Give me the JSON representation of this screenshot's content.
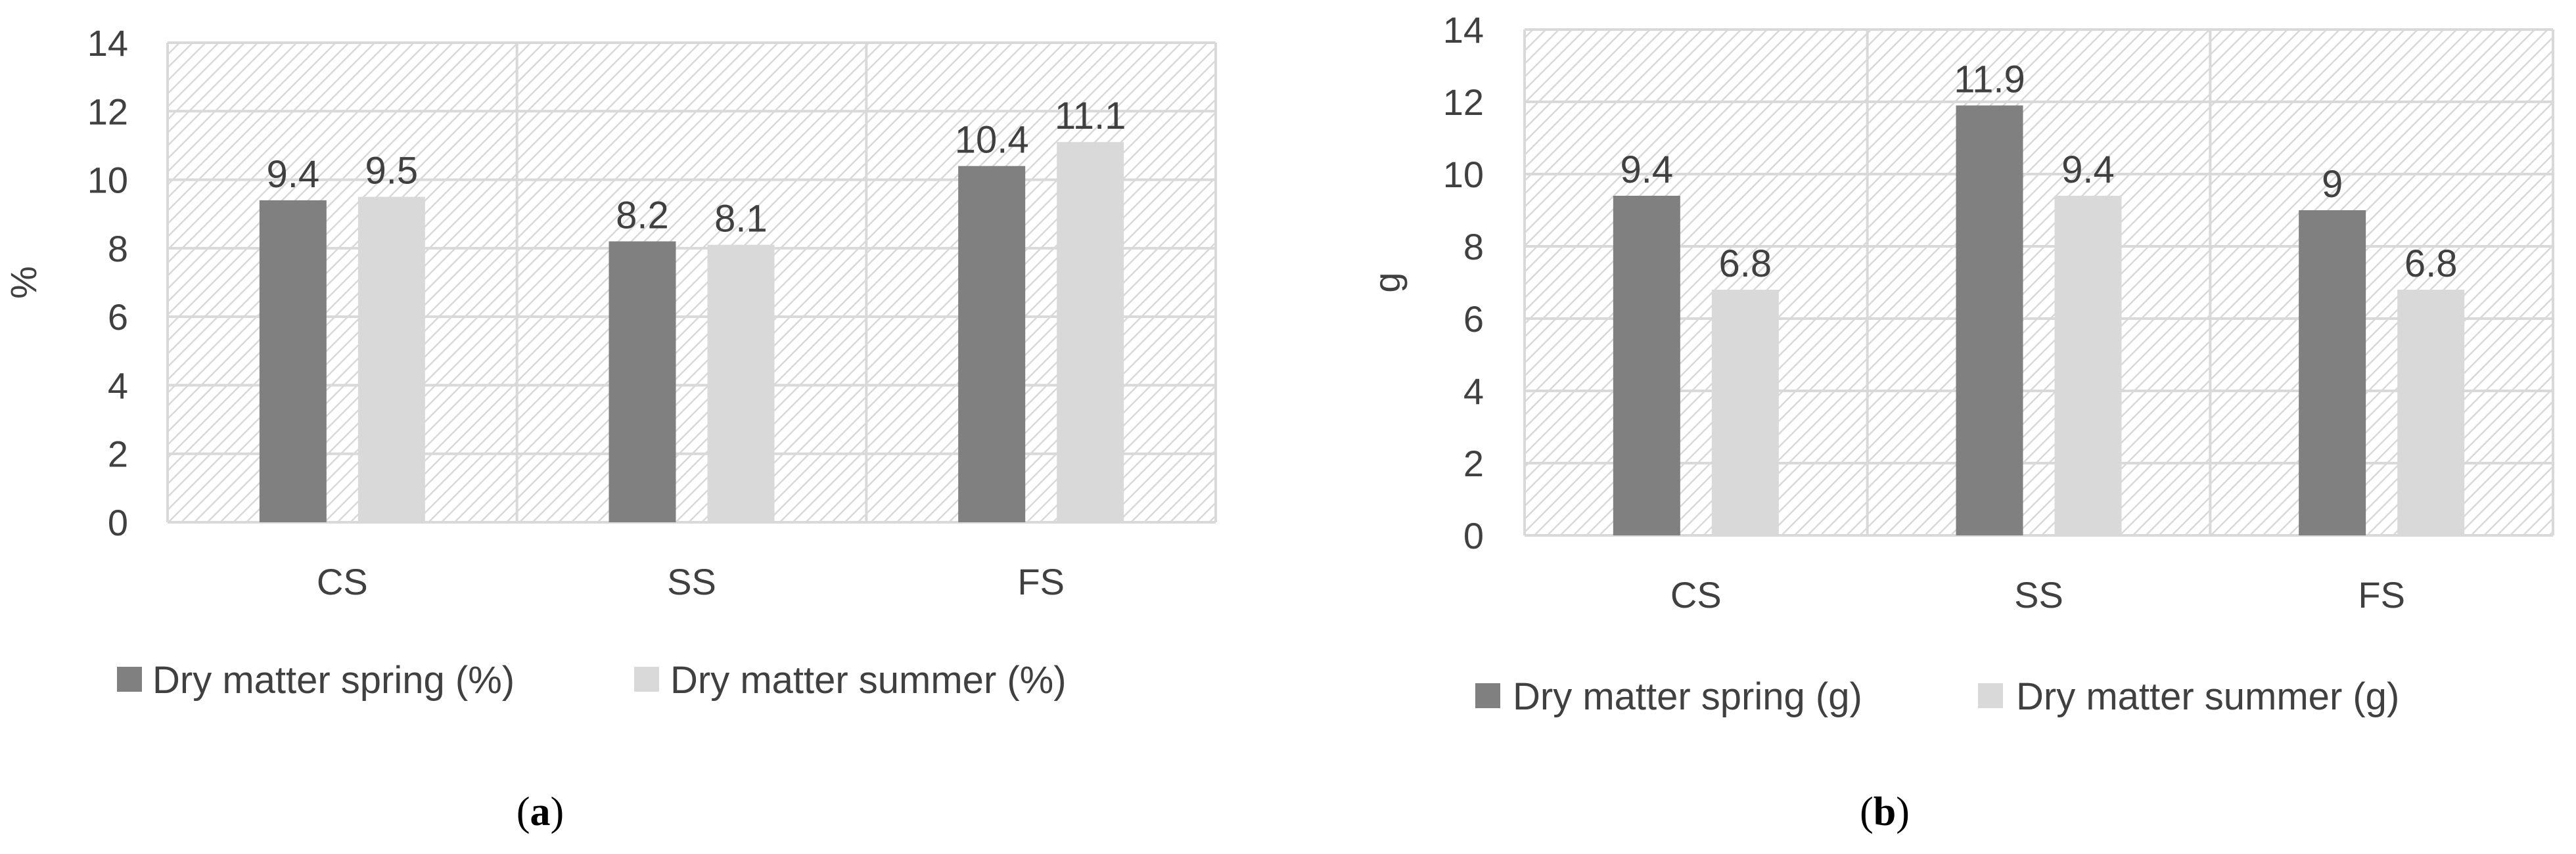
{
  "colors": {
    "spring": "#808080",
    "summer": "#d9d9d9",
    "grid": "#d9d9d9",
    "hatch": "#d9d9d9",
    "text": "#404040"
  },
  "chart_data": [
    {
      "type": "bar",
      "id": "a",
      "categories": [
        "CS",
        "SS",
        "FS"
      ],
      "series": [
        {
          "name": "Dry matter spring (%)",
          "values": [
            9.4,
            8.2,
            10.4
          ]
        },
        {
          "name": "Dry matter summer (%)",
          "values": [
            9.5,
            8.1,
            11.1
          ]
        }
      ],
      "data_labels": [
        [
          "9.4",
          "8.2",
          "10.4"
        ],
        [
          "9.5",
          "8.1",
          "11.1"
        ]
      ],
      "ylabel": "%",
      "ylim": [
        0,
        14
      ],
      "yticks": [
        "0",
        "2",
        "4",
        "6",
        "8",
        "10",
        "12",
        "14"
      ],
      "grid": true,
      "legend": "bottom",
      "panel_label": {
        "open": "(",
        "letter": "a",
        "close": ")"
      }
    },
    {
      "type": "bar",
      "id": "b",
      "categories": [
        "CS",
        "SS",
        "FS"
      ],
      "series": [
        {
          "name": "Dry matter spring (g)",
          "values": [
            9.4,
            11.9,
            9.0
          ]
        },
        {
          "name": "Dry matter summer (g)",
          "values": [
            6.8,
            9.4,
            6.8
          ]
        }
      ],
      "data_labels": [
        [
          "9.4",
          "11.9",
          "9"
        ],
        [
          "6.8",
          "9.4",
          "6.8"
        ]
      ],
      "ylabel": "g",
      "ylim": [
        0,
        14
      ],
      "yticks": [
        "0",
        "2",
        "4",
        "6",
        "8",
        "10",
        "12",
        "14"
      ],
      "grid": true,
      "legend": "bottom",
      "panel_label": {
        "open": "(",
        "letter": "b",
        "close": ")"
      }
    }
  ]
}
